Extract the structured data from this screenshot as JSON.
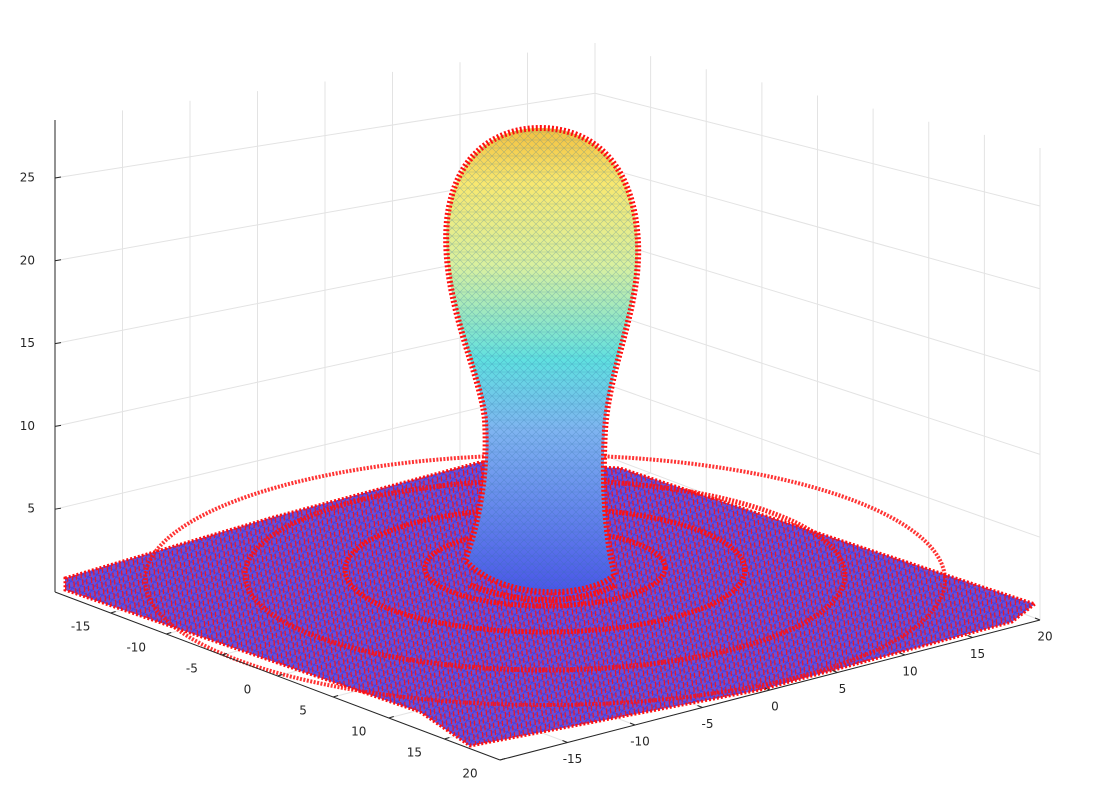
{
  "chart_data": {
    "type": "surface3d",
    "xlim": [
      -20,
      20
    ],
    "ylim": [
      -20,
      20
    ],
    "zlim": [
      0,
      28.5
    ],
    "xticks": [
      -15,
      -10,
      -5,
      0,
      5,
      10,
      15,
      20
    ],
    "yticks": [
      -15,
      -10,
      -5,
      0,
      5,
      10,
      15,
      20
    ],
    "zticks": [
      5,
      10,
      15,
      20,
      25
    ],
    "grid": true
  }
}
